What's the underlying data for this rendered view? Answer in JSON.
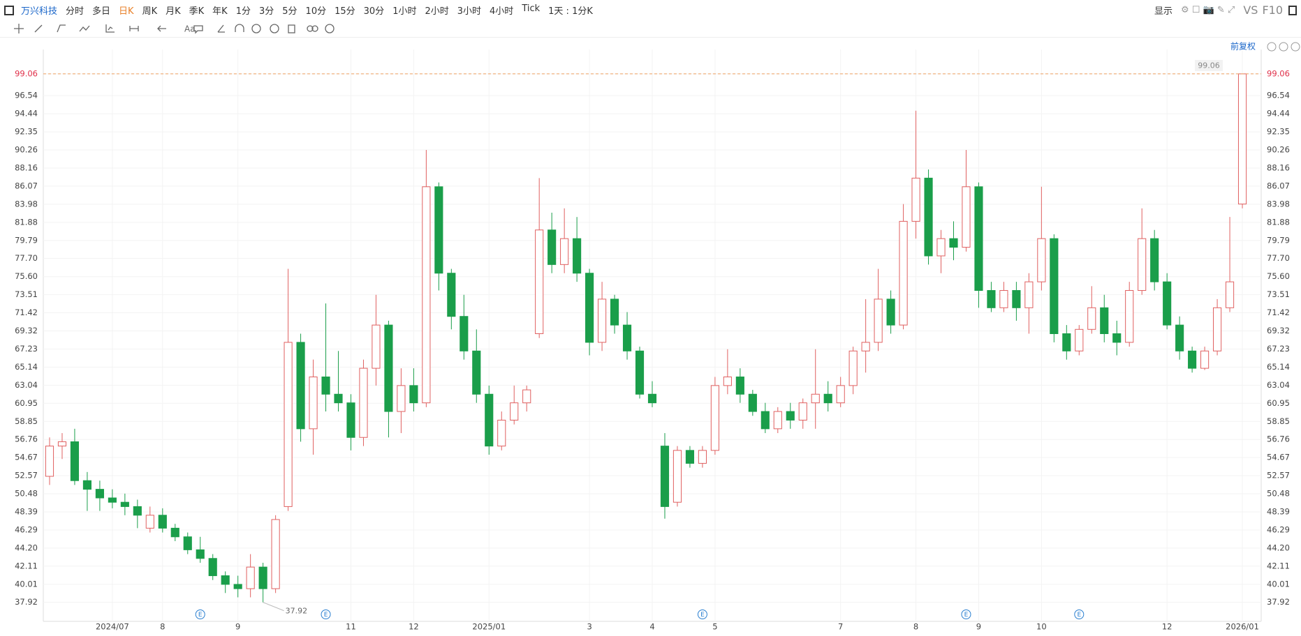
{
  "toolbar": {
    "stock": "万兴科技",
    "periods": [
      "分时",
      "多日",
      "日K",
      "周K",
      "月K",
      "季K",
      "年K",
      "1分",
      "3分",
      "5分",
      "10分",
      "15分",
      "30分",
      "1小时",
      "2小时",
      "3小时",
      "4小时",
      "Tick",
      "1天 : 1分K"
    ],
    "active": 2,
    "display": "显示",
    "vs": "VS",
    "f10": "F10"
  },
  "adjust": "前复权",
  "chart_data": {
    "type": "candlestick",
    "up_color": "#e06060",
    "down_color": "#1a9e4a",
    "grid": true,
    "xlim": [
      -0.5,
      96.5
    ],
    "ylim": [
      35.72,
      101.07
    ],
    "yticks": [
      37.92,
      40.01,
      42.11,
      {
        "value": 44.2,
        "label": "44.20"
      },
      46.29,
      48.39,
      50.48,
      52.57,
      54.67,
      56.76,
      58.85,
      60.95,
      63.04,
      65.14,
      67.23,
      69.32,
      71.42,
      73.51,
      {
        "value": 75.6,
        "label": "75.60"
      },
      {
        "value": 77.7,
        "label": "77.70"
      },
      79.79,
      81.88,
      83.98,
      86.07,
      88.16,
      90.26,
      92.35,
      94.44,
      96.54,
      99.06
    ],
    "xticks": [
      {
        "value": 5,
        "label": "2024/07"
      },
      {
        "value": 9,
        "label": "8"
      },
      {
        "value": 15,
        "label": "9"
      },
      {
        "value": 24,
        "label": "11"
      },
      {
        "value": 29,
        "label": "12"
      },
      {
        "value": 35,
        "label": "2025/01"
      },
      {
        "value": 43,
        "label": "3"
      },
      {
        "value": 48,
        "label": "4"
      },
      {
        "value": 53,
        "label": "5"
      },
      {
        "value": 63,
        "label": "7"
      },
      {
        "value": 69,
        "label": "8"
      },
      {
        "value": 74,
        "label": "9"
      },
      {
        "value": 79,
        "label": "10"
      },
      {
        "value": 89,
        "label": "12"
      },
      {
        "value": 95,
        "label": "2026/01"
      }
    ],
    "open": [
      52.5,
      56,
      56.5,
      52,
      51,
      50,
      49.5,
      49,
      46.5,
      48,
      46.5,
      45.5,
      44,
      43,
      41,
      40,
      39.5,
      42,
      39.5,
      49,
      68,
      58,
      64,
      62,
      61,
      57,
      65,
      70,
      60,
      63,
      61,
      86,
      76,
      71,
      67,
      62,
      56,
      59,
      61,
      69,
      81,
      77,
      80,
      76,
      68,
      73,
      70,
      67,
      62,
      56,
      49.5,
      55.5,
      54,
      55.5,
      63,
      64,
      62,
      60,
      58,
      60,
      59,
      61,
      62,
      61,
      63,
      67,
      68,
      73,
      70,
      82,
      87,
      78,
      80,
      79,
      86,
      74,
      72,
      74,
      72,
      75,
      80,
      69,
      67,
      69.5,
      72,
      69,
      68,
      74,
      80,
      75,
      70,
      67,
      65,
      67,
      72,
      84
    ],
    "high": [
      57,
      57.5,
      58,
      53,
      52,
      51,
      50.5,
      49.8,
      49,
      48.8,
      47,
      46,
      45.5,
      43.5,
      41.5,
      41,
      43.5,
      42.5,
      48,
      76.5,
      69,
      66,
      72.5,
      67,
      62,
      66,
      73.5,
      70.5,
      65,
      65,
      90.26,
      86.5,
      76.5,
      73.5,
      69.5,
      63,
      60,
      63,
      63,
      87,
      83,
      83.5,
      82.5,
      76.5,
      75,
      73.5,
      71.5,
      67.5,
      63.5,
      57.5,
      56,
      56,
      56,
      64,
      67.2,
      65,
      62.5,
      61,
      60.5,
      61,
      61.5,
      67.2,
      63.5,
      64,
      67.5,
      73,
      76.5,
      74,
      84,
      94.8,
      88,
      81,
      82,
      90.26,
      86.5,
      75,
      75,
      75,
      76,
      86,
      80.5,
      70,
      70,
      74.5,
      73.5,
      70.5,
      75,
      83.5,
      81,
      76,
      71,
      67.5,
      67.5,
      73,
      82.5,
      99.06
    ],
    "low": [
      51.5,
      54.5,
      51.5,
      48.5,
      48.5,
      48.8,
      48,
      46.5,
      46,
      46,
      45,
      43.5,
      42.5,
      40.5,
      39,
      38.5,
      38.5,
      37.92,
      39,
      48.5,
      56.5,
      55,
      60,
      60,
      55.5,
      56,
      63,
      57,
      57.5,
      60,
      60.5,
      74,
      69.5,
      66,
      61,
      55,
      55.5,
      58.5,
      60,
      68.5,
      76,
      76,
      75,
      66.5,
      67,
      69,
      66,
      61.5,
      60.5,
      47.6,
      49,
      53.5,
      53.5,
      55,
      62,
      61,
      59.5,
      57.5,
      57.5,
      58,
      58,
      58,
      60,
      60.5,
      62,
      64.5,
      67,
      69,
      69.5,
      80,
      77,
      76,
      77.5,
      78.5,
      72,
      71.5,
      71.5,
      70.5,
      69,
      74,
      68,
      66,
      66.5,
      69,
      68,
      66.5,
      67.5,
      73.5,
      74,
      69.5,
      66,
      64.5,
      64.8,
      66.5,
      71.5,
      83.5
    ],
    "close": [
      56,
      56.5,
      52,
      51,
      50,
      49.5,
      49,
      48,
      48,
      46.5,
      45.5,
      44,
      43,
      41,
      40,
      39.5,
      42,
      39.5,
      47.5,
      68,
      58,
      64,
      62,
      61,
      57,
      65,
      70,
      60,
      63,
      61,
      86,
      76,
      71,
      67,
      62,
      56,
      59,
      61,
      62.5,
      81,
      77,
      80,
      76,
      68,
      73,
      70,
      67,
      62,
      61,
      49,
      55.5,
      54,
      55.5,
      63,
      64,
      62,
      60,
      58,
      60,
      59,
      61,
      62,
      61,
      63,
      67,
      68,
      73,
      70,
      82,
      87,
      78,
      80,
      79,
      86,
      74,
      72,
      74,
      72,
      75,
      80,
      69,
      67,
      69.5,
      72,
      69,
      68,
      74,
      80,
      75,
      70,
      67,
      65,
      67,
      72,
      75,
      99.06
    ],
    "last_price": 99.06,
    "high_label": 99.06,
    "low_label": 37.92,
    "events": [
      {
        "at": 12,
        "label": "E"
      },
      {
        "at": 22,
        "label": "E"
      },
      {
        "at": 52,
        "label": "E"
      },
      {
        "at": 73,
        "label": "E"
      },
      {
        "at": 82,
        "label": "E"
      }
    ]
  }
}
